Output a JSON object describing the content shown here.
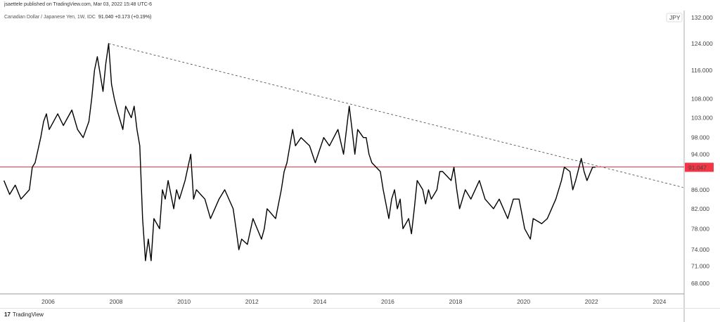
{
  "header": {
    "published": "jsaettele published on TradingView.com, Mar 03, 2022 15:48 UTC-6",
    "symbol": "Canadian Dollar / Japanese Yen, 1W, IDC",
    "last": "91.040",
    "change": "+0.173 (+0.19%)"
  },
  "currency_badge": "JPY",
  "footer": {
    "brand": "TradingView"
  },
  "colors": {
    "line": "#000000",
    "hline": "#f23645",
    "trend": "#555555"
  },
  "chart_data": {
    "type": "line",
    "title": "Canadian Dollar / Japanese Yen, 1W, IDC",
    "y_scale": "log",
    "ylim": [
      66,
      134
    ],
    "xlim": [
      "2004-09",
      "2024-09"
    ],
    "grid": false,
    "y_ticks": [
      "124.000",
      "116.000",
      "108.000",
      "103.000",
      "98.000",
      "94.000",
      "86.000",
      "82.000",
      "78.000",
      "74.000",
      "71.000",
      "68.000"
    ],
    "y_tick_values": [
      124,
      116,
      108,
      103,
      98,
      94,
      86,
      82,
      78,
      74,
      71,
      68
    ],
    "y_top_partial_label": "132.000",
    "x_ticks": [
      "2006",
      "2008",
      "2010",
      "2012",
      "2014",
      "2016",
      "2018",
      "2020",
      "2022",
      "2024"
    ],
    "horizontal_line": {
      "value": 91.047,
      "label": "91.047"
    },
    "trendline": {
      "from": [
        "2007-10",
        124
      ],
      "to": [
        "2024-09",
        86.5
      ],
      "style": "dashed"
    },
    "series": [
      {
        "points": [
          [
            "2004-09",
            88
          ],
          [
            "2004-11",
            85
          ],
          [
            "2005-01",
            87
          ],
          [
            "2005-03",
            84
          ],
          [
            "2005-06",
            86
          ],
          [
            "2005-07",
            91
          ],
          [
            "2005-08",
            92
          ],
          [
            "2005-10",
            98
          ],
          [
            "2005-11",
            102
          ],
          [
            "2005-12",
            104
          ],
          [
            "2006-01",
            100
          ],
          [
            "2006-04",
            104
          ],
          [
            "2006-06",
            101
          ],
          [
            "2006-09",
            105
          ],
          [
            "2006-11",
            100
          ],
          [
            "2007-01",
            98
          ],
          [
            "2007-03",
            102
          ],
          [
            "2007-04",
            108
          ],
          [
            "2007-05",
            116
          ],
          [
            "2007-06",
            120
          ],
          [
            "2007-08",
            110
          ],
          [
            "2007-09",
            118
          ],
          [
            "2007-10",
            124
          ],
          [
            "2007-11",
            112
          ],
          [
            "2007-12",
            108
          ],
          [
            "2008-01",
            105
          ],
          [
            "2008-03",
            100
          ],
          [
            "2008-04",
            106
          ],
          [
            "2008-06",
            103
          ],
          [
            "2008-07",
            106
          ],
          [
            "2008-08",
            100
          ],
          [
            "2008-09",
            96
          ],
          [
            "2008-10",
            80
          ],
          [
            "2008-11",
            72
          ],
          [
            "2008-12",
            76
          ],
          [
            "2009-01",
            72
          ],
          [
            "2009-02",
            80
          ],
          [
            "2009-04",
            78
          ],
          [
            "2009-05",
            86
          ],
          [
            "2009-06",
            84
          ],
          [
            "2009-07",
            88
          ],
          [
            "2009-09",
            82
          ],
          [
            "2009-10",
            86
          ],
          [
            "2009-11",
            84
          ],
          [
            "2010-01",
            88
          ],
          [
            "2010-03",
            94
          ],
          [
            "2010-04",
            84
          ],
          [
            "2010-05",
            86
          ],
          [
            "2010-08",
            84
          ],
          [
            "2010-10",
            80
          ],
          [
            "2011-01",
            84
          ],
          [
            "2011-03",
            86
          ],
          [
            "2011-06",
            82
          ],
          [
            "2011-07",
            78
          ],
          [
            "2011-08",
            74
          ],
          [
            "2011-09",
            76
          ],
          [
            "2011-11",
            75
          ],
          [
            "2012-01",
            80
          ],
          [
            "2012-04",
            76
          ],
          [
            "2012-05",
            78
          ],
          [
            "2012-06",
            82
          ],
          [
            "2012-09",
            80
          ],
          [
            "2012-11",
            86
          ],
          [
            "2012-12",
            90
          ],
          [
            "2013-01",
            92
          ],
          [
            "2013-03",
            100
          ],
          [
            "2013-04",
            96
          ],
          [
            "2013-06",
            98
          ],
          [
            "2013-09",
            96
          ],
          [
            "2013-11",
            92
          ],
          [
            "2014-02",
            98
          ],
          [
            "2014-04",
            96
          ],
          [
            "2014-07",
            100
          ],
          [
            "2014-09",
            94
          ],
          [
            "2014-11",
            106
          ],
          [
            "2014-12",
            100
          ],
          [
            "2015-01",
            94
          ],
          [
            "2015-02",
            100
          ],
          [
            "2015-04",
            98
          ],
          [
            "2015-05",
            98
          ],
          [
            "2015-06",
            94
          ],
          [
            "2015-07",
            92
          ],
          [
            "2015-10",
            90
          ],
          [
            "2015-11",
            86
          ],
          [
            "2016-01",
            80
          ],
          [
            "2016-02",
            84
          ],
          [
            "2016-03",
            86
          ],
          [
            "2016-04",
            82
          ],
          [
            "2016-05",
            84
          ],
          [
            "2016-06",
            78
          ],
          [
            "2016-08",
            80
          ],
          [
            "2016-09",
            77
          ],
          [
            "2016-10",
            82
          ],
          [
            "2016-11",
            88
          ],
          [
            "2017-01",
            86
          ],
          [
            "2017-02",
            83
          ],
          [
            "2017-03",
            86
          ],
          [
            "2017-04",
            84
          ],
          [
            "2017-06",
            86
          ],
          [
            "2017-07",
            90
          ],
          [
            "2017-08",
            90
          ],
          [
            "2017-11",
            88
          ],
          [
            "2017-12",
            91
          ],
          [
            "2018-01",
            86
          ],
          [
            "2018-02",
            82
          ],
          [
            "2018-04",
            86
          ],
          [
            "2018-06",
            84
          ],
          [
            "2018-09",
            88
          ],
          [
            "2018-11",
            84
          ],
          [
            "2019-02",
            82
          ],
          [
            "2019-04",
            84
          ],
          [
            "2019-07",
            80
          ],
          [
            "2019-09",
            84
          ],
          [
            "2019-11",
            84
          ],
          [
            "2020-01",
            78
          ],
          [
            "2020-03",
            76
          ],
          [
            "2020-04",
            80
          ],
          [
            "2020-07",
            79
          ],
          [
            "2020-09",
            80
          ],
          [
            "2020-12",
            84
          ],
          [
            "2021-02",
            88
          ],
          [
            "2021-03",
            91
          ],
          [
            "2021-05",
            90
          ],
          [
            "2021-06",
            86
          ],
          [
            "2021-07",
            88
          ],
          [
            "2021-09",
            93
          ],
          [
            "2021-10",
            90
          ],
          [
            "2021-11",
            88
          ],
          [
            "2022-01",
            91
          ],
          [
            "2022-02",
            91
          ]
        ]
      }
    ]
  }
}
